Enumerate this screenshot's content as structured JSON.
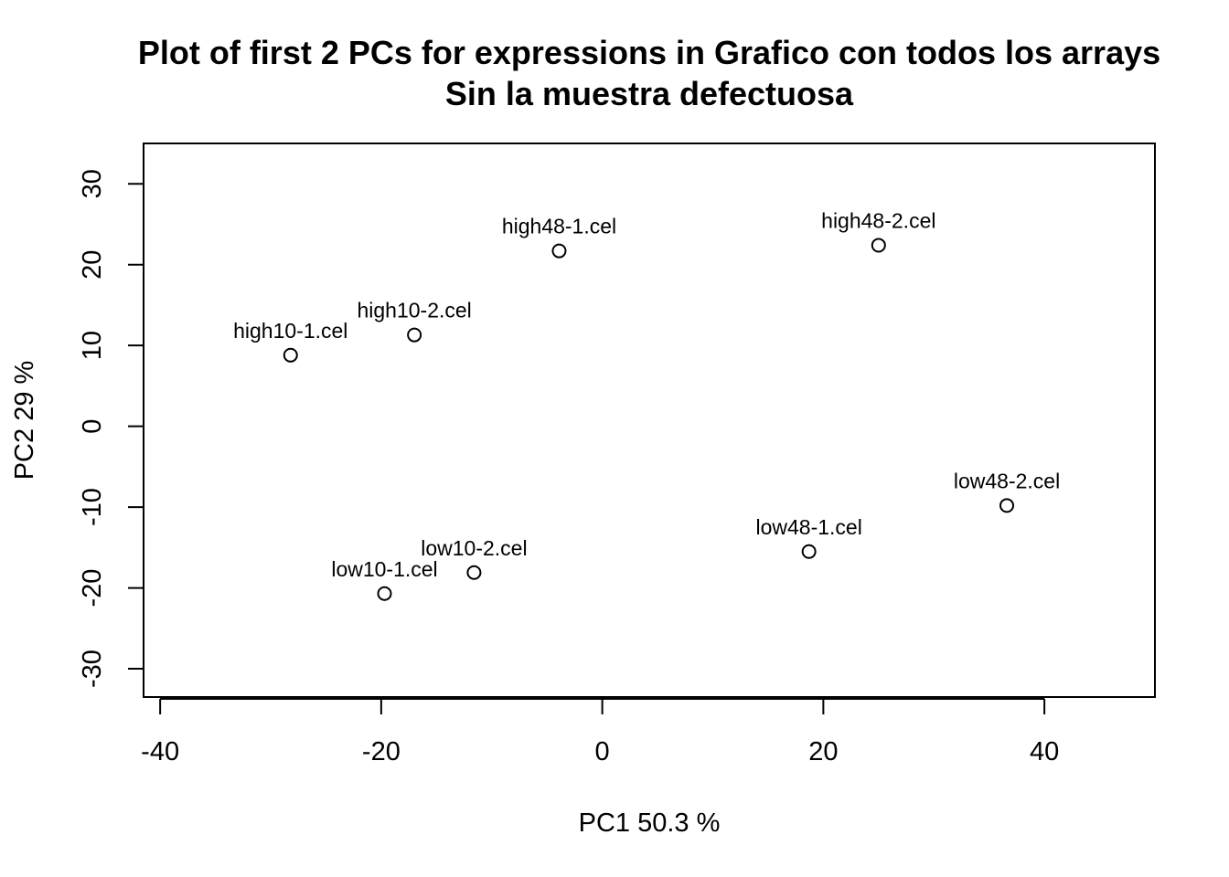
{
  "chart_data": {
    "type": "scatter",
    "title": "Plot of first 2 PCs for expressions in Grafico con todos los arrays",
    "subtitle": "Sin la muestra defectuosa",
    "xlabel": "PC1 50.3 %",
    "ylabel": "PC2 29 %",
    "xlim": [
      -41.5,
      50
    ],
    "ylim": [
      -33.5,
      35
    ],
    "xticks": [
      -40,
      -20,
      0,
      20,
      40
    ],
    "yticks": [
      -30,
      -20,
      -10,
      0,
      10,
      20,
      30
    ],
    "xtick_labels": [
      "-40",
      "-20",
      "0",
      "20",
      "40"
    ],
    "ytick_labels": [
      "-30",
      "-20",
      "-10",
      "0",
      "10",
      "20",
      "30"
    ],
    "grid": false,
    "marker": "open-circle",
    "points": [
      {
        "label": "high10-1.cel",
        "x": -28.2,
        "y": 8.8
      },
      {
        "label": "high10-2.cel",
        "x": -17.0,
        "y": 11.3
      },
      {
        "label": "high48-1.cel",
        "x": -3.9,
        "y": 21.7
      },
      {
        "label": "high48-2.cel",
        "x": 25.0,
        "y": 22.4
      },
      {
        "label": "low10-1.cel",
        "x": -19.7,
        "y": -20.7
      },
      {
        "label": "low10-2.cel",
        "x": -11.6,
        "y": -18.1
      },
      {
        "label": "low48-1.cel",
        "x": 18.7,
        "y": -15.5
      },
      {
        "label": "low48-2.cel",
        "x": 36.6,
        "y": -9.8
      }
    ]
  }
}
